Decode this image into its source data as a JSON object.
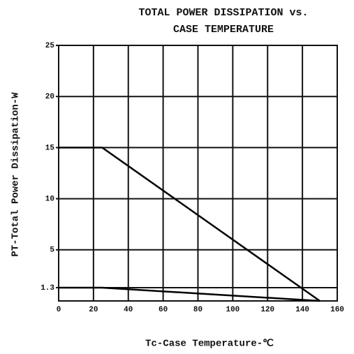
{
  "chart_data": {
    "type": "line",
    "title": [
      "TOTAL POWER DISSIPATION vs.",
      "CASE TEMPERATURE"
    ],
    "x_label": "Tc-Case Temperature-℃",
    "y_label": "PT-Total Power Dissipation-W",
    "series": [
      {
        "color": "#000000",
        "x": [
          0,
          25,
          150
        ],
        "values": [
          15,
          15,
          0
        ]
      },
      {
        "color": "#000000",
        "x": [
          0,
          25,
          150
        ],
        "values": [
          1.3,
          1.3,
          0
        ]
      }
    ],
    "xlim": [
      0,
      160
    ],
    "xticks": [
      0,
      20,
      40,
      60,
      80,
      100,
      120,
      140,
      160
    ],
    "ylim": [
      0,
      25
    ],
    "yticks": [
      1.3,
      5,
      10,
      15,
      20,
      25
    ],
    "grid": true
  }
}
